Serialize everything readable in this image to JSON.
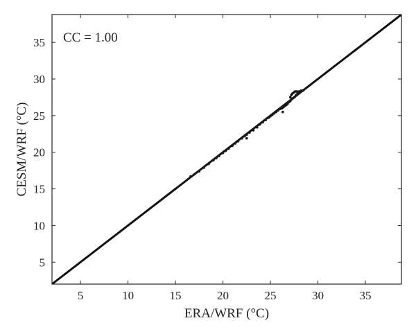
{
  "chart_data": {
    "type": "scatter",
    "title": "",
    "xlabel": "ERA/WRF (°C)",
    "ylabel": "CESM/WRF (°C)",
    "annotation": "CC = 1.00",
    "xlim": [
      2,
      38.8
    ],
    "ylim": [
      2,
      38.8
    ],
    "xticks": [
      5,
      10,
      15,
      20,
      25,
      30,
      35
    ],
    "yticks": [
      5,
      10,
      15,
      20,
      25,
      30,
      35
    ],
    "grid": false,
    "reference_line": {
      "from": [
        2,
        2
      ],
      "to": [
        38.8,
        38.8
      ],
      "color": "#111111"
    },
    "point_color": "#1a1a1a",
    "series": [
      {
        "x": [
          16.6,
          17.0,
          17.5,
          18.0,
          18.5,
          19.0,
          19.3,
          19.6,
          20.0,
          20.3,
          20.6,
          21.0,
          21.3,
          21.6,
          22.0,
          22.3,
          22.5,
          22.8,
          23.2,
          23.6,
          23.9,
          24.2,
          24.5,
          24.8,
          25.0,
          25.2,
          25.4,
          25.6,
          25.8,
          26.0,
          26.2,
          26.3,
          26.4,
          26.5,
          26.6,
          26.7,
          26.8,
          26.9,
          27.0,
          27.1,
          27.1,
          27.2,
          27.2,
          27.3,
          27.3,
          27.4,
          27.4,
          27.5,
          27.5,
          27.6,
          27.6,
          27.7,
          27.7,
          27.8,
          27.8,
          27.9,
          28.0,
          28.1,
          28.2,
          28.3,
          28.4,
          28.5,
          22.5,
          26.3
        ],
        "y": [
          16.7,
          17.0,
          17.4,
          17.9,
          18.4,
          18.9,
          19.2,
          19.5,
          19.9,
          20.2,
          20.5,
          20.9,
          21.2,
          21.5,
          21.9,
          22.2,
          22.4,
          22.7,
          23.0,
          23.4,
          23.8,
          24.1,
          24.4,
          24.7,
          24.9,
          25.1,
          25.3,
          25.5,
          25.7,
          25.9,
          26.0,
          26.1,
          26.2,
          26.3,
          26.4,
          26.5,
          26.6,
          26.8,
          26.9,
          27.0,
          27.5,
          27.2,
          27.8,
          27.3,
          28.0,
          27.4,
          28.1,
          27.5,
          28.2,
          27.6,
          28.3,
          27.8,
          28.3,
          27.9,
          28.3,
          28.1,
          28.3,
          28.3,
          28.4,
          28.4,
          28.4,
          28.5,
          21.9,
          25.5
        ]
      }
    ]
  }
}
